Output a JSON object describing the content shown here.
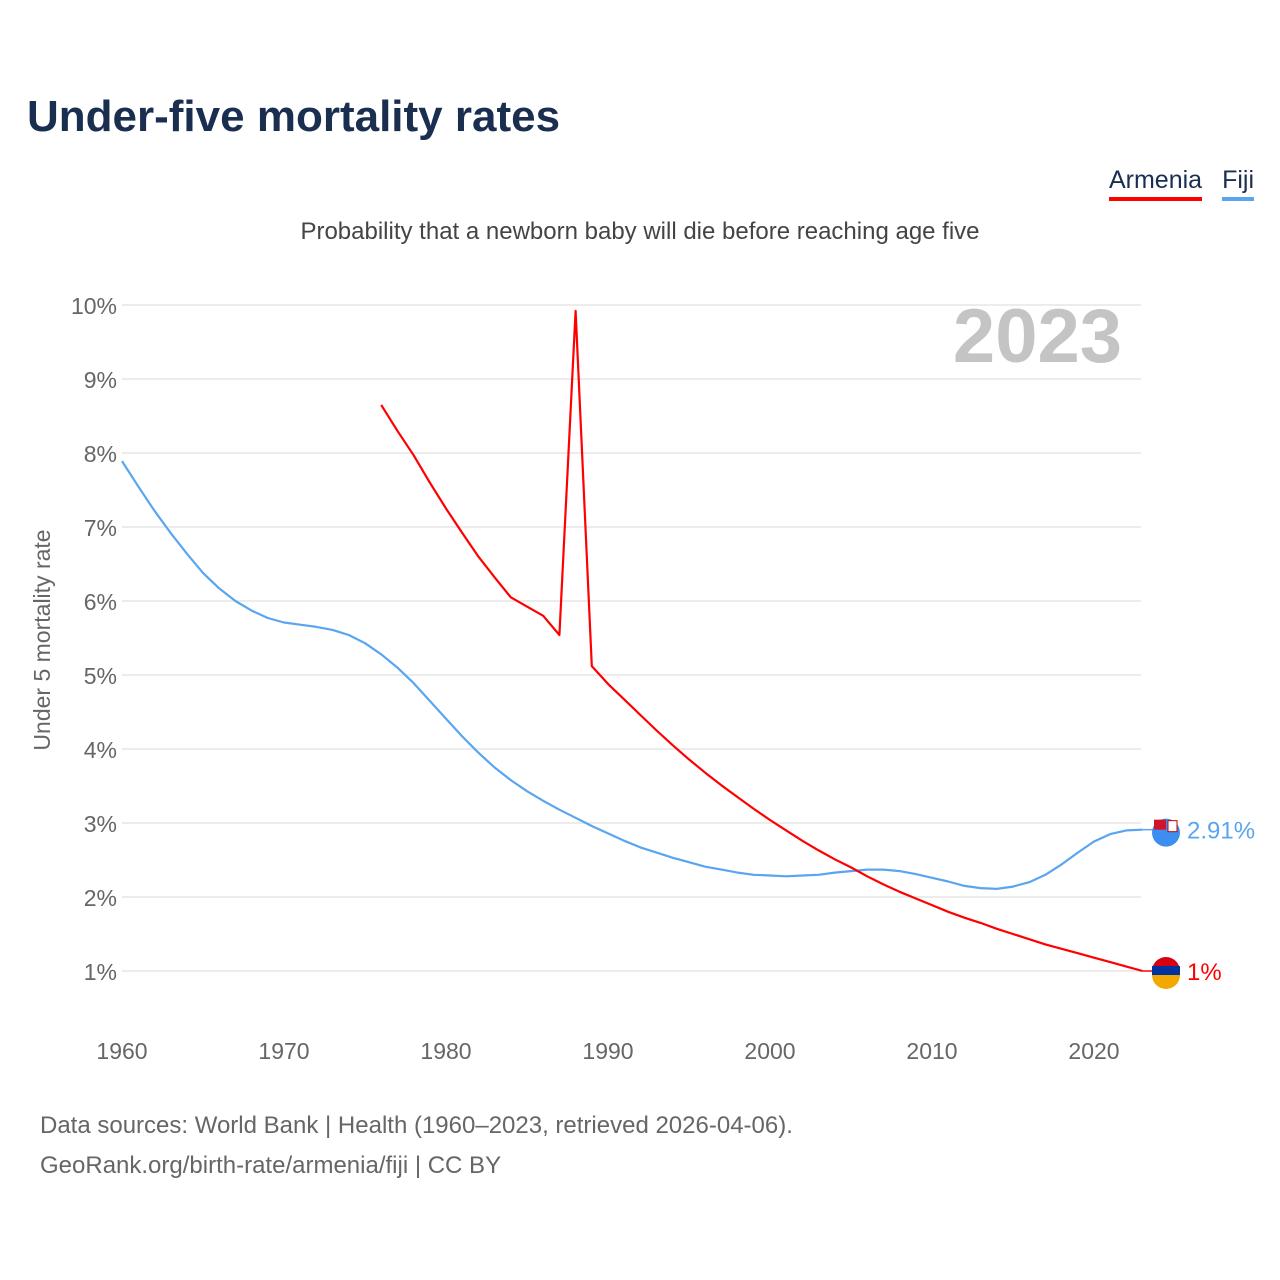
{
  "header": {
    "title": "Under-five mortality rates",
    "subtitle": "Probability that a newborn baby will die before reaching age five"
  },
  "footer": {
    "line1": "Data sources: World Bank | Health (1960–2023, retrieved 2026-04-06).",
    "line2": "GeoRank.org/birth-rate/armenia/fiji | CC BY"
  },
  "chart_data": {
    "type": "line",
    "title": "Under-five mortality rates",
    "subtitle": "Probability that a newborn baby will die before reaching age five",
    "xlabel": "",
    "ylabel": "Under 5 mortality rate",
    "year_label": "2023",
    "xlim": [
      1960,
      2023
    ],
    "ylim": [
      1,
      10
    ],
    "x_ticks": [
      "1960",
      "1970",
      "1980",
      "1990",
      "2000",
      "2010",
      "2020"
    ],
    "y_ticks": [
      "1%",
      "2%",
      "3%",
      "4%",
      "5%",
      "6%",
      "7%",
      "8%",
      "9%",
      "10%"
    ],
    "legend_position": "top-right",
    "series": [
      {
        "name": "Armenia",
        "color": "#ff0000",
        "end_label": "1%",
        "start": 1976,
        "values": [
          8.65,
          8.3,
          7.97,
          7.6,
          7.25,
          6.92,
          6.6,
          6.32,
          6.05,
          5.8,
          5.54,
          9.92,
          5.12,
          4.88,
          4.67,
          4.46,
          4.25,
          4.05,
          3.86,
          3.68,
          3.51,
          3.35,
          3.19,
          3.04,
          2.9,
          2.76,
          2.63,
          2.51,
          2.4,
          2.28,
          2.17,
          2.07,
          1.98,
          1.89,
          1.8,
          1.72,
          1.65,
          1.57,
          1.5,
          1.43,
          1.36,
          1.3,
          1.24,
          1.18,
          1.12,
          1.06,
          1.0
        ],
        "years": [
          1976,
          1977,
          1978,
          1979,
          1980,
          1981,
          1982,
          1983,
          1984,
          1986,
          1987,
          1988,
          1989,
          1990,
          1991,
          1992,
          1993,
          1994,
          1995,
          1996,
          1997,
          1998,
          1999,
          2000,
          2001,
          2002,
          2003,
          2004,
          2005,
          2006,
          2007,
          2008,
          2009,
          2010,
          2011,
          2012,
          2013,
          2014,
          2015,
          2016,
          2017,
          2018,
          2019,
          2020,
          2021,
          2022,
          2023
        ]
      },
      {
        "name": "Fiji",
        "color": "#5aa5f0",
        "end_label": "2.91%",
        "start": 1960,
        "values": [
          7.89,
          7.55,
          7.22,
          6.92,
          6.64,
          6.38,
          6.17,
          6.0,
          5.87,
          5.77,
          5.71,
          5.68,
          5.65,
          5.61,
          5.54,
          5.43,
          5.28,
          5.1,
          4.89,
          4.65,
          4.41,
          4.17,
          3.95,
          3.75,
          3.58,
          3.43,
          3.3,
          3.18,
          3.07,
          2.96,
          2.86,
          2.76,
          2.67,
          2.6,
          2.53,
          2.47,
          2.41,
          2.37,
          2.33,
          2.3,
          2.29,
          2.28,
          2.29,
          2.3,
          2.33,
          2.35,
          2.37,
          2.37,
          2.35,
          2.31,
          2.26,
          2.21,
          2.15,
          2.12,
          2.11,
          2.14,
          2.2,
          2.3,
          2.44,
          2.6,
          2.75,
          2.85,
          2.9,
          2.91
        ]
      }
    ]
  }
}
